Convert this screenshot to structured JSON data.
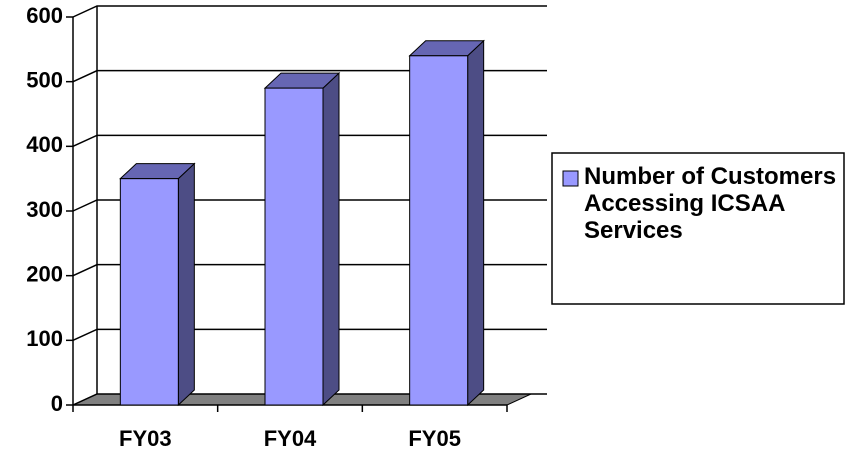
{
  "chart_data": {
    "type": "bar3d",
    "categories": [
      "FY03",
      "FY04",
      "FY05"
    ],
    "series": [
      {
        "name": "Number of Customers Accessing ICSAA Services",
        "color": "#9999ff",
        "values": [
          350,
          490,
          540
        ]
      }
    ],
    "ylim": [
      0,
      600
    ],
    "yticks": [
      0,
      100,
      200,
      300,
      400,
      500,
      600
    ],
    "grid": true,
    "legend": "right"
  }
}
